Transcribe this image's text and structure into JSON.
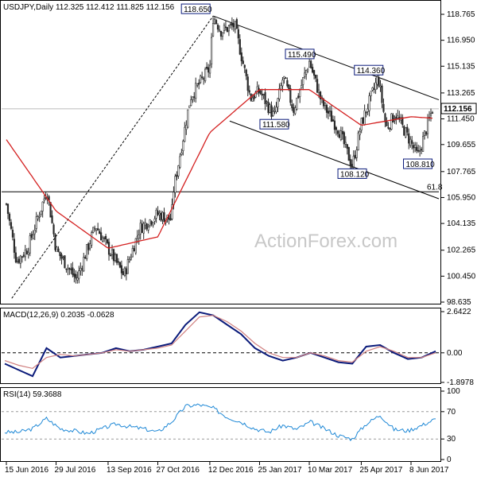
{
  "header": {
    "price_title": "USDJPY,Daily  112.325 112.412 111.825 112.156",
    "macd_title": "MACD(12,26,9) 0.2035 -0.0628",
    "rsi_title": "RSI(14) 59.3688",
    "current_price": "112.156",
    "watermark": "ActionForex.com"
  },
  "colors": {
    "candle": "#2a2a2a",
    "ma": "#d42020",
    "trend": "#000000",
    "macd_line": "#0a1a7a",
    "macd_signal": "#d08080",
    "rsi": "#1e88d6",
    "label_border": "#0a1a7a",
    "label_text": "#000000"
  },
  "chart_data": [
    {
      "type": "candlestick",
      "title": "USDJPY,Daily",
      "y_ticks": [
        "118.765",
        "116.950",
        "115.135",
        "113.265",
        "111.450",
        "109.655",
        "107.765",
        "105.950",
        "104.135",
        "102.265",
        "100.450",
        "98.635"
      ],
      "ylim": [
        98.635,
        118.765
      ],
      "x_ticks": [
        "15 Jun 2016",
        "29 Jul 2016",
        "13 Sep 2016",
        "27 Oct 2016",
        "12 Dec 2016",
        "25 Jan 2017",
        "10 Mar 2017",
        "25 Apr 2017",
        "8 Jun 2017"
      ],
      "anchor_prices": [
        {
          "date": "15 Jun 2016",
          "close": 105.5
        },
        {
          "date": "24 Jun 2016",
          "close": 101.5
        },
        {
          "date": "4 Jul 2016",
          "close": 102.4
        },
        {
          "date": "21 Jul 2016",
          "close": 106.5
        },
        {
          "date": "29 Jul 2016",
          "close": 102.3
        },
        {
          "date": "16 Aug 2016",
          "close": 100.2
        },
        {
          "date": "2 Sep 2016",
          "close": 104.0
        },
        {
          "date": "13 Sep 2016",
          "close": 102.4
        },
        {
          "date": "27 Sep 2016",
          "close": 100.5
        },
        {
          "date": "11 Oct 2016",
          "close": 103.8
        },
        {
          "date": "27 Oct 2016",
          "close": 104.8
        },
        {
          "date": "8 Nov 2016",
          "close": 104.4
        },
        {
          "date": "10 Nov 2016",
          "close": 106.5
        },
        {
          "date": "25 Nov 2016",
          "close": 113.0
        },
        {
          "date": "12 Dec 2016",
          "close": 115.0
        },
        {
          "date": "15 Dec 2016",
          "close": 118.65
        },
        {
          "date": "22 Dec 2016",
          "close": 117.6
        },
        {
          "date": "3 Jan 2017",
          "close": 118.0
        },
        {
          "date": "10 Jan 2017",
          "close": 115.5
        },
        {
          "date": "17 Jan 2017",
          "close": 112.9
        },
        {
          "date": "25 Jan 2017",
          "close": 113.4
        },
        {
          "date": "7 Feb 2017",
          "close": 111.58
        },
        {
          "date": "15 Feb 2017",
          "close": 114.4
        },
        {
          "date": "24 Feb 2017",
          "close": 112.1
        },
        {
          "date": "10 Mar 2017",
          "close": 115.49
        },
        {
          "date": "21 Mar 2017",
          "close": 112.6
        },
        {
          "date": "5 Apr 2017",
          "close": 110.7
        },
        {
          "date": "17 Apr 2017",
          "close": 108.12
        },
        {
          "date": "25 Apr 2017",
          "close": 111.1
        },
        {
          "date": "10 May 2017",
          "close": 114.36
        },
        {
          "date": "17 May 2017",
          "close": 110.8
        },
        {
          "date": "25 May 2017",
          "close": 111.8
        },
        {
          "date": "8 Jun 2017",
          "close": 109.8
        },
        {
          "date": "14 Jun 2017",
          "close": 108.81
        },
        {
          "date": "27 Jun 2017",
          "close": 112.156
        }
      ],
      "ma_anchor_values": [
        {
          "date": "15 Jun 2016",
          "value": 110.0
        },
        {
          "date": "29 Jul 2016",
          "value": 105.0
        },
        {
          "date": "13 Sep 2016",
          "value": 102.4
        },
        {
          "date": "27 Oct 2016",
          "value": 103.2
        },
        {
          "date": "12 Dec 2016",
          "value": 110.5
        },
        {
          "date": "25 Jan 2017",
          "value": 113.5
        },
        {
          "date": "10 Mar 2017",
          "value": 113.5
        },
        {
          "date": "25 Apr 2017",
          "value": 111.0
        },
        {
          "date": "8 Jun 2017",
          "value": 111.6
        },
        {
          "date": "27 Jun 2017",
          "value": 111.5
        }
      ],
      "price_labels": [
        {
          "text": "118.650",
          "value": 118.65,
          "date": "15 Dec 2016"
        },
        {
          "text": "115.490",
          "value": 115.49,
          "date": "10 Mar 2017"
        },
        {
          "text": "114.360",
          "value": 114.36,
          "date": "10 May 2017"
        },
        {
          "text": "111.580",
          "value": 111.58,
          "date": "7 Feb 2017"
        },
        {
          "text": "108.120",
          "value": 108.12,
          "date": "17 Apr 2017"
        },
        {
          "text": "108.810",
          "value": 108.81,
          "date": "14 Jun 2017"
        }
      ],
      "fib_label": "61.8",
      "fib_level": 106.35,
      "current_price": 112.156
    },
    {
      "type": "line",
      "title": "MACD(12,26,9)",
      "y_ticks": [
        "2.6422",
        "0.00",
        "-1.8978"
      ],
      "ylim": [
        -1.8978,
        2.6422
      ],
      "series": [
        {
          "name": "MACD",
          "values": [
            -0.7,
            -1.1,
            -1.5,
            0.3,
            -0.3,
            -0.2,
            -0.1,
            0.0,
            0.3,
            0.1,
            0.2,
            0.4,
            0.6,
            1.8,
            2.6,
            2.4,
            1.8,
            1.2,
            0.3,
            -0.2,
            -0.5,
            -0.3,
            0.0,
            -0.3,
            -0.6,
            -0.7,
            0.4,
            0.5,
            0.0,
            -0.4,
            -0.3,
            0.1
          ]
        },
        {
          "name": "Signal",
          "values": [
            -0.5,
            -0.8,
            -1.0,
            -0.3,
            -0.1,
            -0.2,
            -0.1,
            0.0,
            0.2,
            0.1,
            0.2,
            0.3,
            0.5,
            1.4,
            2.3,
            2.4,
            2.0,
            1.4,
            0.6,
            0.0,
            -0.3,
            -0.3,
            0.0,
            -0.2,
            -0.5,
            -0.6,
            0.1,
            0.4,
            0.1,
            -0.3,
            -0.3,
            0.0
          ]
        }
      ]
    },
    {
      "type": "line",
      "title": "RSI(14)",
      "y_ticks": [
        "100",
        "70",
        "30",
        "0"
      ],
      "ylim": [
        0,
        100
      ],
      "levels": [
        30,
        70
      ],
      "series": [
        {
          "name": "RSI",
          "values": [
            40,
            40,
            45,
            60,
            45,
            42,
            38,
            45,
            52,
            48,
            45,
            40,
            55,
            78,
            80,
            75,
            62,
            55,
            45,
            40,
            50,
            44,
            55,
            45,
            35,
            30,
            52,
            65,
            44,
            42,
            50,
            59.37
          ]
        }
      ]
    }
  ]
}
